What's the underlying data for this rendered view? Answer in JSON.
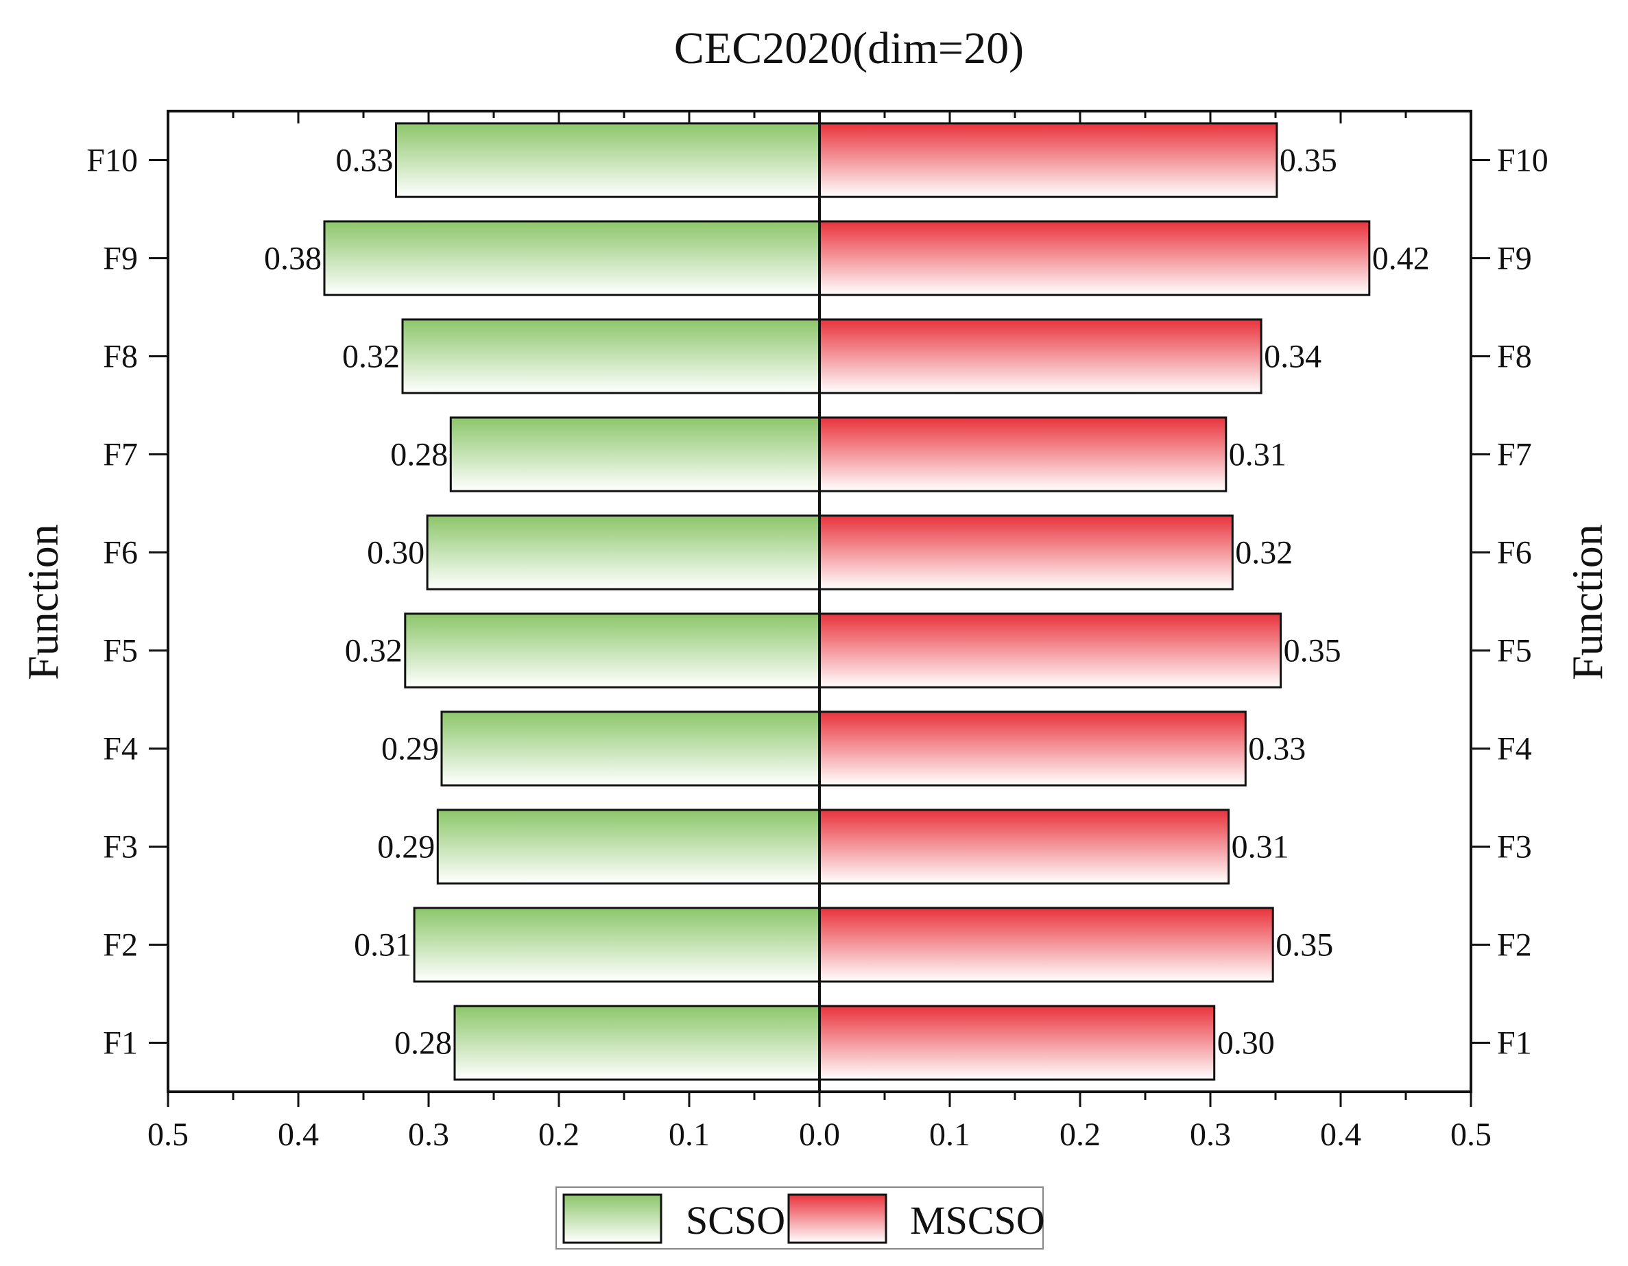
{
  "chart_data": {
    "type": "bar",
    "orientation": "horizontal-butterfly",
    "title": "CEC2020(dim=20)",
    "ylabel_left": "Function",
    "ylabel_right": "Function",
    "categories": [
      "F1",
      "F2",
      "F3",
      "F4",
      "F5",
      "F6",
      "F7",
      "F8",
      "F9",
      "F10"
    ],
    "series": [
      {
        "name": "SCSO",
        "side": "left",
        "color": "#8cc66a",
        "values": [
          0.28,
          0.311,
          0.293,
          0.29,
          0.318,
          0.301,
          0.283,
          0.32,
          0.38,
          0.325
        ],
        "labels": [
          "0.28",
          "0.31",
          "0.29",
          "0.29",
          "0.32",
          "0.30",
          "0.28",
          "0.32",
          "0.38",
          "0.33"
        ]
      },
      {
        "name": "MSCSO",
        "side": "right",
        "color": "#e8333c",
        "values": [
          0.303,
          0.348,
          0.314,
          0.327,
          0.354,
          0.317,
          0.312,
          0.339,
          0.422,
          0.351
        ],
        "labels": [
          "0.30",
          "0.35",
          "0.31",
          "0.33",
          "0.35",
          "0.32",
          "0.31",
          "0.34",
          "0.42",
          "0.35"
        ]
      }
    ],
    "xlim": [
      -0.5,
      0.5
    ],
    "xticks": [
      -0.5,
      -0.4,
      -0.3,
      -0.2,
      -0.1,
      0.0,
      0.1,
      0.2,
      0.3,
      0.4,
      0.5
    ],
    "xtick_labels": [
      "0.5",
      "0.4",
      "0.3",
      "0.2",
      "0.1",
      "0.0",
      "0.1",
      "0.2",
      "0.3",
      "0.4",
      "0.5"
    ],
    "grid": false,
    "legend_position": "bottom-center"
  }
}
